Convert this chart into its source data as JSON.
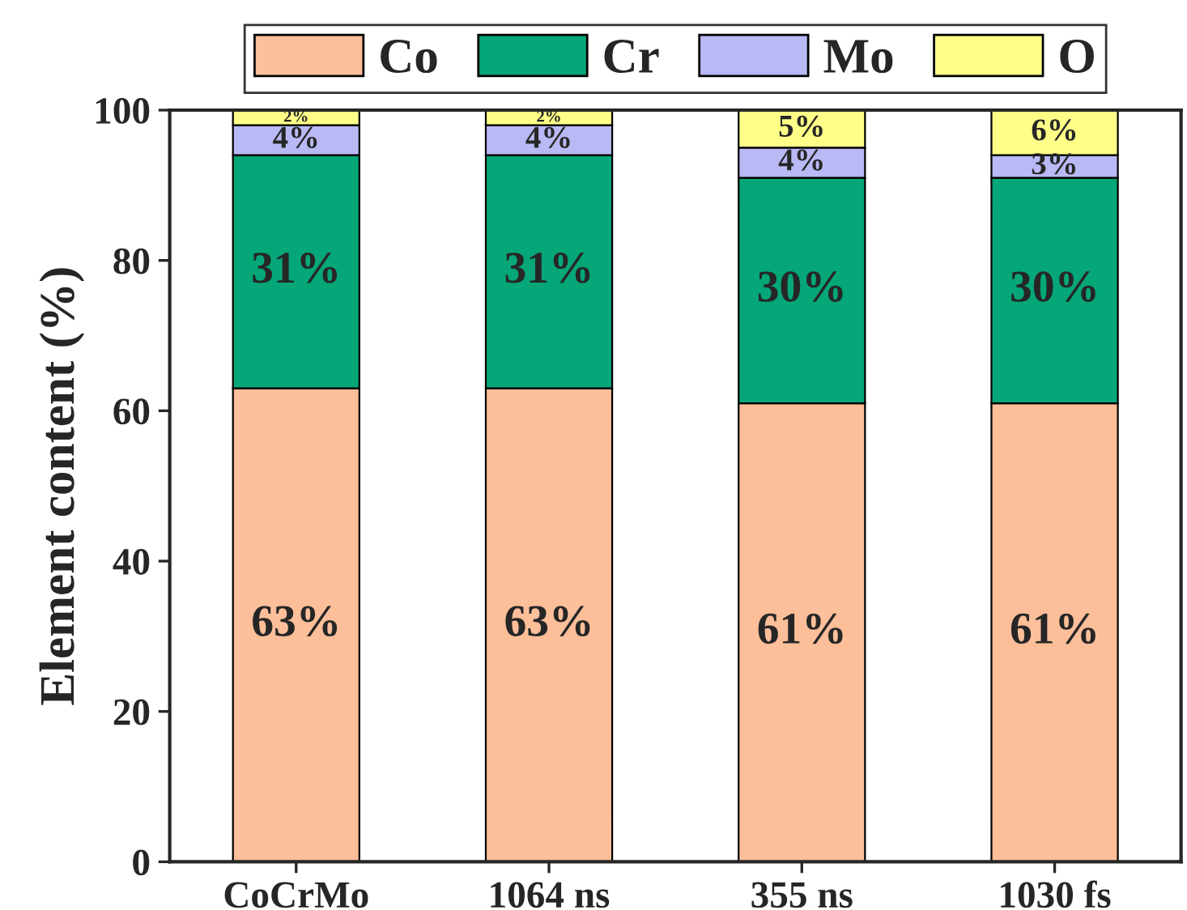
{
  "chart_data": {
    "type": "bar",
    "stacked": true,
    "ylabel": "Element content (%)",
    "categories": [
      "CoCrMo",
      "1064 ns",
      "355 ns",
      "1030 fs"
    ],
    "series": [
      {
        "name": "Co",
        "color": "#fdbf9a",
        "values": [
          63,
          63,
          61,
          61
        ],
        "value_labels": [
          "63%",
          "63%",
          "61%",
          "61%"
        ]
      },
      {
        "name": "Cr",
        "color": "#05a678",
        "values": [
          31,
          31,
          30,
          30
        ],
        "value_labels": [
          "31%",
          "31%",
          "30%",
          "30%"
        ]
      },
      {
        "name": "Mo",
        "color": "#b9b9f5",
        "values": [
          4,
          4,
          4,
          3
        ],
        "value_labels": [
          "4%",
          "4%",
          "4%",
          "3%"
        ]
      },
      {
        "name": "O",
        "color": "#ffff88",
        "values": [
          2,
          2,
          5,
          6
        ],
        "value_labels": [
          "2%",
          "2%",
          "5%",
          "6%"
        ]
      }
    ],
    "ylim": [
      0,
      100
    ],
    "yticks": [
      0,
      20,
      40,
      60,
      80,
      100
    ],
    "legend": "top",
    "grid": false
  }
}
